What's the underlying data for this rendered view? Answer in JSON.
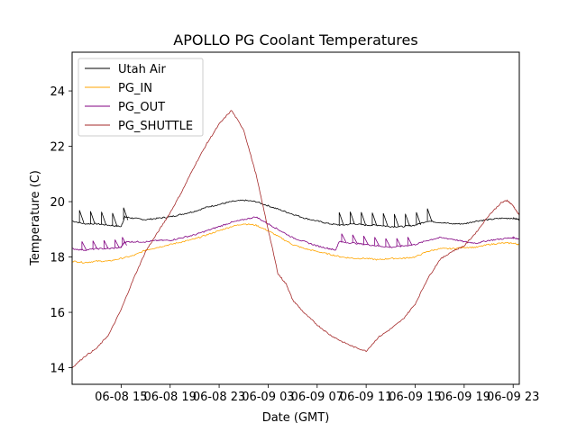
{
  "chart_data": {
    "type": "line",
    "title": "APOLLO PG Coolant Temperatures",
    "xlabel": "Date (GMT)",
    "ylabel": "Temperature (C)",
    "x_units": "hours since 06-08 11:00 GMT",
    "xlim": [
      0,
      36.5
    ],
    "ylim": [
      13.4,
      25.4
    ],
    "x_ticks": [
      {
        "x": 4,
        "label": "06-08 15"
      },
      {
        "x": 8,
        "label": "06-08 19"
      },
      {
        "x": 12,
        "label": "06-08 23"
      },
      {
        "x": 16,
        "label": "06-09 03"
      },
      {
        "x": 20,
        "label": "06-09 07"
      },
      {
        "x": 24,
        "label": "06-09 11"
      },
      {
        "x": 28,
        "label": "06-09 15"
      },
      {
        "x": 32,
        "label": "06-09 19"
      },
      {
        "x": 36,
        "label": "06-09 23"
      }
    ],
    "y_ticks": [
      14,
      16,
      18,
      20,
      22,
      24
    ],
    "legend_position": "top-left",
    "series": [
      {
        "name": "Utah Air",
        "color": "#000000",
        "spikes": [
          0.6,
          1.5,
          2.4,
          3.3,
          4.2,
          21.8,
          22.7,
          23.6,
          24.5,
          25.4,
          26.3,
          27.2,
          28.1,
          29.0
        ],
        "spike_height": 0.45,
        "points": [
          [
            0,
            19.3
          ],
          [
            1,
            19.2
          ],
          [
            2,
            19.2
          ],
          [
            3,
            19.15
          ],
          [
            4,
            19.1
          ],
          [
            4.3,
            19.45
          ],
          [
            5,
            19.4
          ],
          [
            6,
            19.35
          ],
          [
            7,
            19.4
          ],
          [
            8,
            19.45
          ],
          [
            9,
            19.55
          ],
          [
            10,
            19.65
          ],
          [
            11,
            19.8
          ],
          [
            12,
            19.9
          ],
          [
            13,
            20.0
          ],
          [
            14,
            20.05
          ],
          [
            15,
            20.0
          ],
          [
            16,
            19.85
          ],
          [
            17,
            19.7
          ],
          [
            18,
            19.55
          ],
          [
            19,
            19.4
          ],
          [
            20,
            19.3
          ],
          [
            21,
            19.2
          ],
          [
            22,
            19.15
          ],
          [
            23,
            19.2
          ],
          [
            24,
            19.15
          ],
          [
            25,
            19.15
          ],
          [
            26,
            19.1
          ],
          [
            27,
            19.1
          ],
          [
            28,
            19.15
          ],
          [
            29,
            19.3
          ],
          [
            30,
            19.25
          ],
          [
            31,
            19.2
          ],
          [
            32,
            19.2
          ],
          [
            33,
            19.3
          ],
          [
            34,
            19.35
          ],
          [
            35,
            19.4
          ],
          [
            36,
            19.4
          ],
          [
            36.5,
            19.35
          ]
        ]
      },
      {
        "name": "PG_IN",
        "color": "#ffa500",
        "spikes": [],
        "spike_height": 0,
        "points": [
          [
            0,
            17.85
          ],
          [
            1,
            17.8
          ],
          [
            2,
            17.85
          ],
          [
            3,
            17.85
          ],
          [
            4,
            17.95
          ],
          [
            5,
            18.05
          ],
          [
            6,
            18.25
          ],
          [
            7,
            18.35
          ],
          [
            8,
            18.45
          ],
          [
            9,
            18.55
          ],
          [
            10,
            18.65
          ],
          [
            11,
            18.8
          ],
          [
            12,
            18.95
          ],
          [
            13,
            19.1
          ],
          [
            14,
            19.2
          ],
          [
            15,
            19.15
          ],
          [
            16,
            18.95
          ],
          [
            17,
            18.7
          ],
          [
            18,
            18.45
          ],
          [
            19,
            18.3
          ],
          [
            20,
            18.2
          ],
          [
            21,
            18.1
          ],
          [
            22,
            18.0
          ],
          [
            23,
            17.95
          ],
          [
            24,
            17.95
          ],
          [
            25,
            17.9
          ],
          [
            26,
            17.95
          ],
          [
            27,
            17.95
          ],
          [
            28,
            18.0
          ],
          [
            29,
            18.2
          ],
          [
            30,
            18.3
          ],
          [
            31,
            18.3
          ],
          [
            32,
            18.35
          ],
          [
            33,
            18.35
          ],
          [
            34,
            18.45
          ],
          [
            35,
            18.5
          ],
          [
            36,
            18.5
          ],
          [
            36.5,
            18.45
          ]
        ]
      },
      {
        "name": "PG_OUT",
        "color": "#800080",
        "spikes": [
          0.8,
          1.7,
          2.6,
          3.5,
          4.1,
          22.0,
          22.9,
          23.8,
          24.7,
          25.6,
          26.5,
          27.4
        ],
        "spike_height": 0.3,
        "points": [
          [
            0,
            18.3
          ],
          [
            1,
            18.25
          ],
          [
            2,
            18.3
          ],
          [
            3,
            18.3
          ],
          [
            4,
            18.35
          ],
          [
            4.3,
            18.55
          ],
          [
            5,
            18.55
          ],
          [
            6,
            18.55
          ],
          [
            7,
            18.6
          ],
          [
            8,
            18.6
          ],
          [
            9,
            18.7
          ],
          [
            10,
            18.8
          ],
          [
            11,
            18.95
          ],
          [
            12,
            19.1
          ],
          [
            13,
            19.25
          ],
          [
            14,
            19.35
          ],
          [
            15,
            19.45
          ],
          [
            16,
            19.2
          ],
          [
            17,
            18.95
          ],
          [
            18,
            18.7
          ],
          [
            19,
            18.55
          ],
          [
            20,
            18.4
          ],
          [
            21,
            18.3
          ],
          [
            21.5,
            18.25
          ],
          [
            21.8,
            18.55
          ],
          [
            23,
            18.5
          ],
          [
            24,
            18.45
          ],
          [
            25,
            18.4
          ],
          [
            26,
            18.35
          ],
          [
            27,
            18.4
          ],
          [
            28,
            18.45
          ],
          [
            29,
            18.6
          ],
          [
            30,
            18.7
          ],
          [
            31,
            18.65
          ],
          [
            32,
            18.55
          ],
          [
            33,
            18.5
          ],
          [
            34,
            18.6
          ],
          [
            35,
            18.65
          ],
          [
            36,
            18.7
          ],
          [
            36.5,
            18.65
          ]
        ]
      },
      {
        "name": "PG_SHUTTLE",
        "color": "#a52a2a",
        "spikes": [],
        "spike_height": 0,
        "points": [
          [
            0,
            14.0
          ],
          [
            1,
            14.4
          ],
          [
            2,
            14.7
          ],
          [
            3,
            15.2
          ],
          [
            4,
            16.1
          ],
          [
            5,
            17.2
          ],
          [
            6,
            18.2
          ],
          [
            7,
            18.9
          ],
          [
            8,
            19.6
          ],
          [
            9,
            20.4
          ],
          [
            10,
            21.3
          ],
          [
            11,
            22.1
          ],
          [
            12,
            22.8
          ],
          [
            13,
            23.3
          ],
          [
            14,
            22.6
          ],
          [
            15,
            21.0
          ],
          [
            16,
            19.0
          ],
          [
            16.8,
            17.4
          ],
          [
            17.5,
            17.0
          ],
          [
            18,
            16.45
          ],
          [
            19,
            15.95
          ],
          [
            20,
            15.55
          ],
          [
            21,
            15.2
          ],
          [
            22,
            14.95
          ],
          [
            23,
            14.75
          ],
          [
            24,
            14.6
          ],
          [
            25,
            15.1
          ],
          [
            26,
            15.4
          ],
          [
            27,
            15.75
          ],
          [
            28,
            16.3
          ],
          [
            29,
            17.2
          ],
          [
            30,
            17.9
          ],
          [
            31,
            18.2
          ],
          [
            32,
            18.4
          ],
          [
            33,
            18.9
          ],
          [
            34,
            19.5
          ],
          [
            35,
            19.95
          ],
          [
            35.5,
            20.05
          ],
          [
            36,
            19.85
          ],
          [
            36.5,
            19.5
          ]
        ]
      }
    ]
  }
}
